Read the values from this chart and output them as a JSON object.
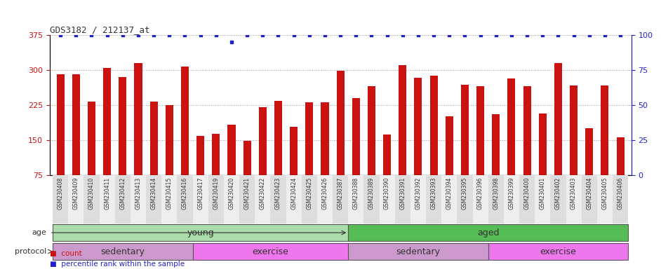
{
  "title": "GDS3182 / 212137_at",
  "samples": [
    "GSM230408",
    "GSM230409",
    "GSM230410",
    "GSM230411",
    "GSM230412",
    "GSM230413",
    "GSM230414",
    "GSM230415",
    "GSM230416",
    "GSM230417",
    "GSM230419",
    "GSM230420",
    "GSM230421",
    "GSM230422",
    "GSM230423",
    "GSM230424",
    "GSM230425",
    "GSM230426",
    "GSM230387",
    "GSM230388",
    "GSM230389",
    "GSM230390",
    "GSM230391",
    "GSM230392",
    "GSM230393",
    "GSM230394",
    "GSM230395",
    "GSM230396",
    "GSM230398",
    "GSM230399",
    "GSM230400",
    "GSM230401",
    "GSM230402",
    "GSM230403",
    "GSM230404",
    "GSM230405",
    "GSM230406"
  ],
  "values": [
    291,
    291,
    232,
    304,
    285,
    315,
    232,
    225,
    307,
    158,
    163,
    183,
    148,
    220,
    233,
    178,
    230,
    230,
    298,
    240,
    265,
    162,
    310,
    283,
    287,
    200,
    268,
    265,
    205,
    282,
    265,
    207,
    315,
    267,
    175,
    267,
    155
  ],
  "percentile_values": [
    100,
    100,
    100,
    100,
    100,
    100,
    100,
    100,
    100,
    100,
    100,
    95,
    100,
    100,
    100,
    100,
    100,
    100,
    100,
    100,
    100,
    100,
    100,
    100,
    100,
    100,
    100,
    100,
    100,
    100,
    100,
    100,
    100,
    100,
    100,
    100,
    100
  ],
  "bar_color": "#cc1111",
  "dot_color": "#2222cc",
  "ylim_left": [
    75,
    375
  ],
  "yticks_left": [
    75,
    150,
    225,
    300,
    375
  ],
  "ylim_right": [
    0,
    100
  ],
  "yticks_right": [
    0,
    25,
    50,
    75,
    100
  ],
  "age_groups": [
    {
      "label": "young",
      "start": 0,
      "end": 19,
      "color": "#aaddaa"
    },
    {
      "label": "aged",
      "start": 19,
      "end": 37,
      "color": "#55bb55"
    }
  ],
  "protocol_groups": [
    {
      "label": "sedentary",
      "start": 0,
      "end": 9,
      "color": "#cc99cc"
    },
    {
      "label": "exercise",
      "start": 9,
      "end": 19,
      "color": "#ee77ee"
    },
    {
      "label": "sedentary",
      "start": 19,
      "end": 28,
      "color": "#cc99cc"
    },
    {
      "label": "exercise",
      "start": 28,
      "end": 37,
      "color": "#ee77ee"
    }
  ],
  "legend_count_color": "#cc1111",
  "legend_pct_color": "#2222cc",
  "bar_width": 0.5,
  "grid_color": "#999999",
  "tick_bg_even": "#dddddd",
  "tick_bg_odd": "#eeeeee"
}
